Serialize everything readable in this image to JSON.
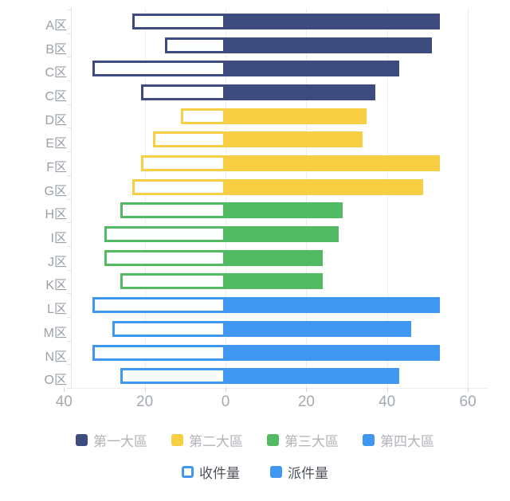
{
  "chart_data": {
    "type": "bar",
    "orientation": "horizontal-diverging",
    "title": "",
    "categories": [
      "A区",
      "B区",
      "C区",
      "C区",
      "D区",
      "E区",
      "F区",
      "G区",
      "H区",
      "I区",
      "J区",
      "K区",
      "L区",
      "M区",
      "N区",
      "O区"
    ],
    "series": [
      {
        "name": "收件量",
        "style": "hollow",
        "direction": "left",
        "values": [
          23,
          15,
          33,
          21,
          11,
          18,
          21,
          23,
          26,
          30,
          30,
          26,
          33,
          28,
          33,
          26
        ]
      },
      {
        "name": "派件量",
        "style": "solid",
        "direction": "right",
        "values": [
          53,
          51,
          43,
          37,
          35,
          34,
          53,
          49,
          29,
          28,
          24,
          24,
          53,
          46,
          53,
          43
        ]
      }
    ],
    "row_groups": [
      {
        "name": "第一大區",
        "color": "#3e4b7e",
        "first_row": 0,
        "last_row": 3
      },
      {
        "name": "第二大區",
        "color": "#f6cf43",
        "first_row": 4,
        "last_row": 7
      },
      {
        "name": "第三大區",
        "color": "#52ba63",
        "first_row": 8,
        "last_row": 11
      },
      {
        "name": "第四大區",
        "color": "#3f97f2",
        "first_row": 12,
        "last_row": 15
      }
    ],
    "x_ticks": [
      -40,
      -20,
      0,
      20,
      40,
      60
    ],
    "x_tick_labels": [
      "40",
      "20",
      "0",
      "20",
      "40",
      "60"
    ],
    "xlim": [
      -40,
      60
    ],
    "grid": true,
    "legend_position": "bottom"
  },
  "legend": {
    "groups": [
      {
        "label": "第一大區",
        "color": "#3e4b7e"
      },
      {
        "label": "第二大區",
        "color": "#f6cf43"
      },
      {
        "label": "第三大區",
        "color": "#52ba63"
      },
      {
        "label": "第四大區",
        "color": "#3f97f2"
      }
    ],
    "series": [
      {
        "label": "收件量",
        "style": "hollow",
        "color": "#3f97f2"
      },
      {
        "label": "派件量",
        "style": "solid",
        "color": "#3f97f2"
      }
    ]
  }
}
